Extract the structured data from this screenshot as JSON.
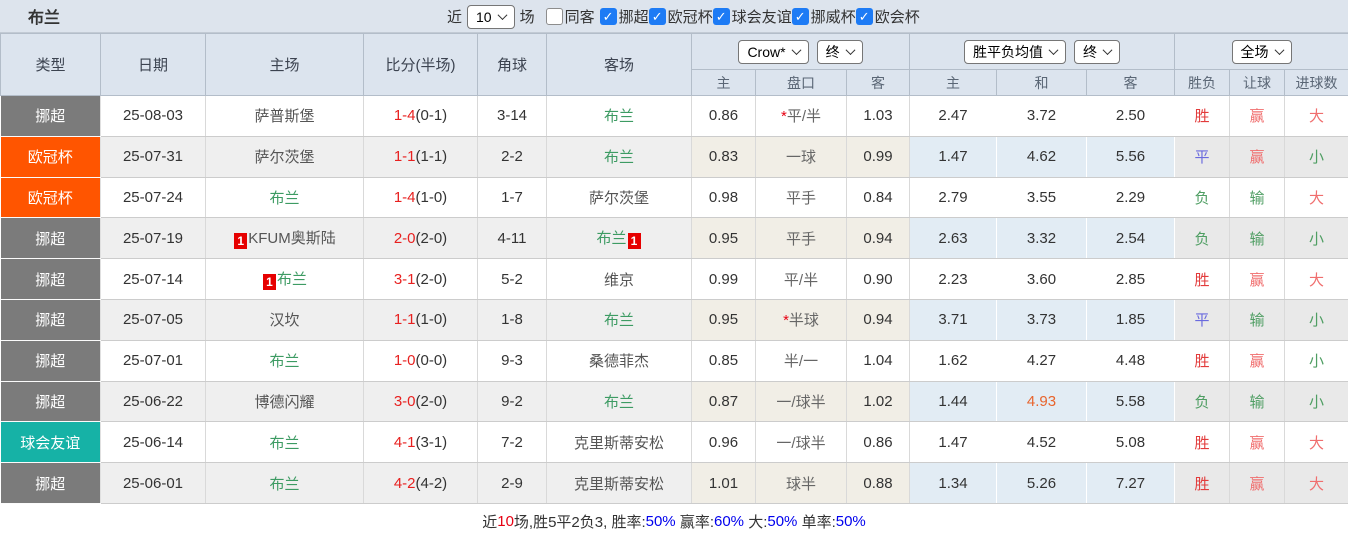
{
  "topbar": {
    "team": "布兰",
    "near_label": "近",
    "games_value": "10",
    "games_label": "场",
    "same_venue": {
      "label": "同客",
      "checked": false
    },
    "leagues": [
      {
        "label": "挪超",
        "checked": true
      },
      {
        "label": "欧冠杯",
        "checked": true
      },
      {
        "label": "球会友谊",
        "checked": true
      },
      {
        "label": "挪威杯",
        "checked": true
      },
      {
        "label": "欧会杯",
        "checked": true
      }
    ]
  },
  "header": {
    "static_cols": [
      "类型",
      "日期",
      "主场",
      "比分(半场)",
      "角球",
      "客场"
    ],
    "odds_group": {
      "select1": "Crow*",
      "select2": "终",
      "subcols": [
        "主",
        "盘口",
        "客"
      ]
    },
    "avg_group": {
      "select1": "胜平负均值",
      "select2": "终",
      "subcols": [
        "主",
        "和",
        "客"
      ]
    },
    "result_group": {
      "select1": "全场",
      "subcols": [
        "胜负",
        "让球",
        "进球数"
      ]
    }
  },
  "league_colors": {
    "挪超": "#7b7b7b",
    "欧冠杯": "#ff5500",
    "球会友谊": "#16b2a6"
  },
  "rows": [
    {
      "type": "挪超",
      "date": "25-08-03",
      "home": {
        "name": "萨普斯堡",
        "self": false
      },
      "score_full": "1-4",
      "score_half": "(0-1)",
      "corner": "3-14",
      "away": {
        "name": "布兰",
        "self": true
      },
      "odds_home": "0.86",
      "star": true,
      "handicap": "平/半",
      "odds_away": "1.03",
      "avg": [
        "2.47",
        "3.72",
        "2.50"
      ],
      "avg_hl": -1,
      "res": [
        "胜",
        "赢",
        "大"
      ],
      "res_color": [
        "red",
        "pink",
        "pink"
      ]
    },
    {
      "type": "欧冠杯",
      "date": "25-07-31",
      "home": {
        "name": "萨尔茨堡",
        "self": false
      },
      "score_full": "1-1",
      "score_half": "(1-1)",
      "corner": "2-2",
      "away": {
        "name": "布兰",
        "self": true
      },
      "odds_home": "0.83",
      "star": false,
      "handicap": "一球",
      "odds_away": "0.99",
      "avg": [
        "1.47",
        "4.62",
        "5.56"
      ],
      "avg_hl": -1,
      "res": [
        "平",
        "赢",
        "小"
      ],
      "res_color": [
        "blue",
        "pink",
        "green"
      ]
    },
    {
      "type": "欧冠杯",
      "date": "25-07-24",
      "home": {
        "name": "布兰",
        "self": true
      },
      "score_full": "1-4",
      "score_half": "(1-0)",
      "corner": "1-7",
      "away": {
        "name": "萨尔茨堡",
        "self": false
      },
      "odds_home": "0.98",
      "star": false,
      "handicap": "平手",
      "odds_away": "0.84",
      "avg": [
        "2.79",
        "3.55",
        "2.29"
      ],
      "avg_hl": -1,
      "res": [
        "负",
        "输",
        "大"
      ],
      "res_color": [
        "green",
        "green",
        "pink"
      ]
    },
    {
      "type": "挪超",
      "date": "25-07-19",
      "home": {
        "name": "KFUM奥斯陆",
        "self": false,
        "badge_before": "1"
      },
      "score_full": "2-0",
      "score_half": "(2-0)",
      "corner": "4-11",
      "away": {
        "name": "布兰",
        "self": true,
        "badge_after": "1"
      },
      "odds_home": "0.95",
      "star": false,
      "handicap": "平手",
      "odds_away": "0.94",
      "avg": [
        "2.63",
        "3.32",
        "2.54"
      ],
      "avg_hl": -1,
      "res": [
        "负",
        "输",
        "小"
      ],
      "res_color": [
        "green",
        "green",
        "green"
      ]
    },
    {
      "type": "挪超",
      "date": "25-07-14",
      "home": {
        "name": "布兰",
        "self": true,
        "badge_before": "1"
      },
      "score_full": "3-1",
      "score_half": "(2-0)",
      "corner": "5-2",
      "away": {
        "name": "维京",
        "self": false
      },
      "odds_home": "0.99",
      "star": false,
      "handicap": "平/半",
      "odds_away": "0.90",
      "avg": [
        "2.23",
        "3.60",
        "2.85"
      ],
      "avg_hl": -1,
      "res": [
        "胜",
        "赢",
        "大"
      ],
      "res_color": [
        "red",
        "pink",
        "pink"
      ]
    },
    {
      "type": "挪超",
      "date": "25-07-05",
      "home": {
        "name": "汉坎",
        "self": false
      },
      "score_full": "1-1",
      "score_half": "(1-0)",
      "corner": "1-8",
      "away": {
        "name": "布兰",
        "self": true
      },
      "odds_home": "0.95",
      "star": true,
      "handicap": "半球",
      "odds_away": "0.94",
      "avg": [
        "3.71",
        "3.73",
        "1.85"
      ],
      "avg_hl": -1,
      "res": [
        "平",
        "输",
        "小"
      ],
      "res_color": [
        "blue",
        "green",
        "green"
      ]
    },
    {
      "type": "挪超",
      "date": "25-07-01",
      "home": {
        "name": "布兰",
        "self": true
      },
      "score_full": "1-0",
      "score_half": "(0-0)",
      "corner": "9-3",
      "away": {
        "name": "桑德菲杰",
        "self": false
      },
      "odds_home": "0.85",
      "star": false,
      "handicap": "半/一",
      "odds_away": "1.04",
      "avg": [
        "1.62",
        "4.27",
        "4.48"
      ],
      "avg_hl": -1,
      "res": [
        "胜",
        "赢",
        "小"
      ],
      "res_color": [
        "red",
        "pink",
        "green"
      ]
    },
    {
      "type": "挪超",
      "date": "25-06-22",
      "home": {
        "name": "博德闪耀",
        "self": false
      },
      "score_full": "3-0",
      "score_half": "(2-0)",
      "corner": "9-2",
      "away": {
        "name": "布兰",
        "self": true
      },
      "odds_home": "0.87",
      "star": false,
      "handicap": "一/球半",
      "odds_away": "1.02",
      "avg": [
        "1.44",
        "4.93",
        "5.58"
      ],
      "avg_hl": 1,
      "res": [
        "负",
        "输",
        "小"
      ],
      "res_color": [
        "green",
        "green",
        "green"
      ]
    },
    {
      "type": "球会友谊",
      "date": "25-06-14",
      "home": {
        "name": "布兰",
        "self": true
      },
      "score_full": "4-1",
      "score_half": "(3-1)",
      "corner": "7-2",
      "away": {
        "name": "克里斯蒂安松",
        "self": false
      },
      "odds_home": "0.96",
      "star": false,
      "handicap": "一/球半",
      "odds_away": "0.86",
      "avg": [
        "1.47",
        "4.52",
        "5.08"
      ],
      "avg_hl": -1,
      "res": [
        "胜",
        "赢",
        "大"
      ],
      "res_color": [
        "red",
        "pink",
        "pink"
      ]
    },
    {
      "type": "挪超",
      "date": "25-06-01",
      "home": {
        "name": "布兰",
        "self": true
      },
      "score_full": "4-2",
      "score_half": "(4-2)",
      "corner": "2-9",
      "away": {
        "name": "克里斯蒂安松",
        "self": false
      },
      "odds_home": "1.01",
      "star": false,
      "handicap": "球半",
      "odds_away": "0.88",
      "avg": [
        "1.34",
        "5.26",
        "7.27"
      ],
      "avg_hl": -1,
      "res": [
        "胜",
        "赢",
        "大"
      ],
      "res_color": [
        "red",
        "pink",
        "pink"
      ]
    }
  ],
  "summary": {
    "segments": [
      {
        "text": "近",
        "color": "dark"
      },
      {
        "text": "10",
        "color": "red"
      },
      {
        "text": "场,胜5平2负3, 胜率:",
        "color": "dark"
      },
      {
        "text": "50%",
        "color": "blue"
      },
      {
        "text": " 赢率:",
        "color": "dark"
      },
      {
        "text": "60%",
        "color": "blue"
      },
      {
        "text": " 大:",
        "color": "dark"
      },
      {
        "text": "50%",
        "color": "blue"
      },
      {
        "text": " 单率:",
        "color": "dark"
      },
      {
        "text": "50%",
        "color": "blue"
      }
    ]
  },
  "colors": {
    "accent_blue_checkbox": "#1d7bf5",
    "score_red": "#e8201f",
    "self_team_green": "#3d9b63",
    "avg_highlight_orange": "#e8642c",
    "result_red": "#e23b3b",
    "result_pink": "#f06e6e",
    "result_green": "#4f9e63",
    "result_blue": "#6a6ade",
    "summary_blue": "#0000ee",
    "header_bg": "#dce4ee"
  }
}
